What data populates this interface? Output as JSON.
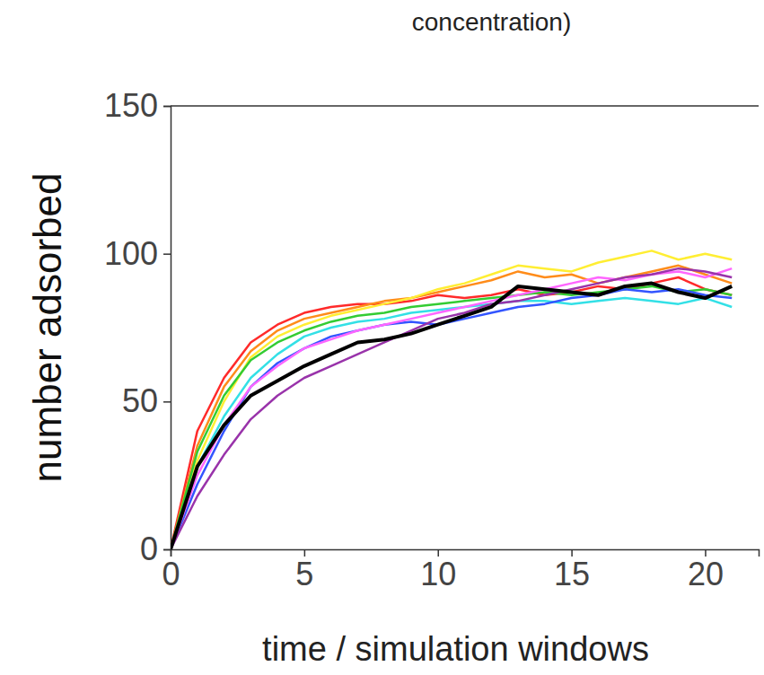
{
  "chart_data": {
    "type": "line",
    "title": "concentration)",
    "x_label": "time / simulation windows",
    "y_label": "number adsorbed",
    "x": [
      0,
      1,
      2,
      3,
      4,
      5,
      6,
      7,
      8,
      9,
      10,
      11,
      12,
      13,
      14,
      15,
      16,
      17,
      18,
      19,
      20,
      21
    ],
    "xlim": [
      0,
      22
    ],
    "xticks": [
      0,
      5,
      10,
      15,
      20
    ],
    "ylim": [
      0,
      150
    ],
    "yticks": [
      0,
      50,
      100,
      150
    ],
    "grid": false,
    "series": [
      {
        "color": "#ff2a2a",
        "values": [
          0,
          40,
          58,
          70,
          76,
          80,
          82,
          83,
          83,
          84,
          86,
          85,
          86,
          88,
          86,
          87,
          89,
          88,
          90,
          92,
          88,
          86
        ]
      },
      {
        "color": "#ff8c1a",
        "values": [
          0,
          35,
          55,
          67,
          74,
          78,
          80,
          82,
          84,
          85,
          87,
          89,
          91,
          94,
          92,
          93,
          90,
          92,
          94,
          96,
          93,
          90
        ]
      },
      {
        "color": "#ffee33",
        "values": [
          0,
          30,
          50,
          65,
          72,
          76,
          79,
          81,
          83,
          85,
          88,
          90,
          93,
          96,
          95,
          94,
          97,
          99,
          101,
          98,
          100,
          98
        ]
      },
      {
        "color": "#33cc33",
        "values": [
          0,
          33,
          52,
          64,
          70,
          74,
          77,
          79,
          80,
          82,
          83,
          84,
          85,
          86,
          87,
          86,
          87,
          88,
          89,
          87,
          88,
          86
        ]
      },
      {
        "color": "#33e0e6",
        "values": [
          0,
          28,
          45,
          58,
          66,
          72,
          75,
          77,
          78,
          80,
          81,
          82,
          83,
          84,
          84,
          83,
          84,
          85,
          84,
          83,
          85,
          82
        ]
      },
      {
        "color": "#3355ff",
        "values": [
          0,
          22,
          40,
          55,
          63,
          68,
          72,
          74,
          76,
          77,
          76,
          78,
          80,
          82,
          83,
          85,
          86,
          88,
          87,
          88,
          86,
          85
        ]
      },
      {
        "color": "#ff66ff",
        "values": [
          0,
          25,
          42,
          55,
          62,
          68,
          71,
          74,
          76,
          78,
          80,
          82,
          84,
          86,
          88,
          90,
          92,
          91,
          93,
          94,
          92,
          95
        ]
      },
      {
        "color": "#9933aa",
        "values": [
          0,
          18,
          32,
          44,
          52,
          58,
          62,
          66,
          70,
          74,
          78,
          80,
          83,
          84,
          86,
          88,
          90,
          92,
          93,
          95,
          94,
          92
        ]
      },
      {
        "color": "#000000",
        "values": [
          0,
          28,
          42,
          52,
          57,
          62,
          66,
          70,
          71,
          73,
          76,
          79,
          82,
          89,
          88,
          87,
          86,
          89,
          90,
          87,
          85,
          89
        ]
      }
    ]
  }
}
